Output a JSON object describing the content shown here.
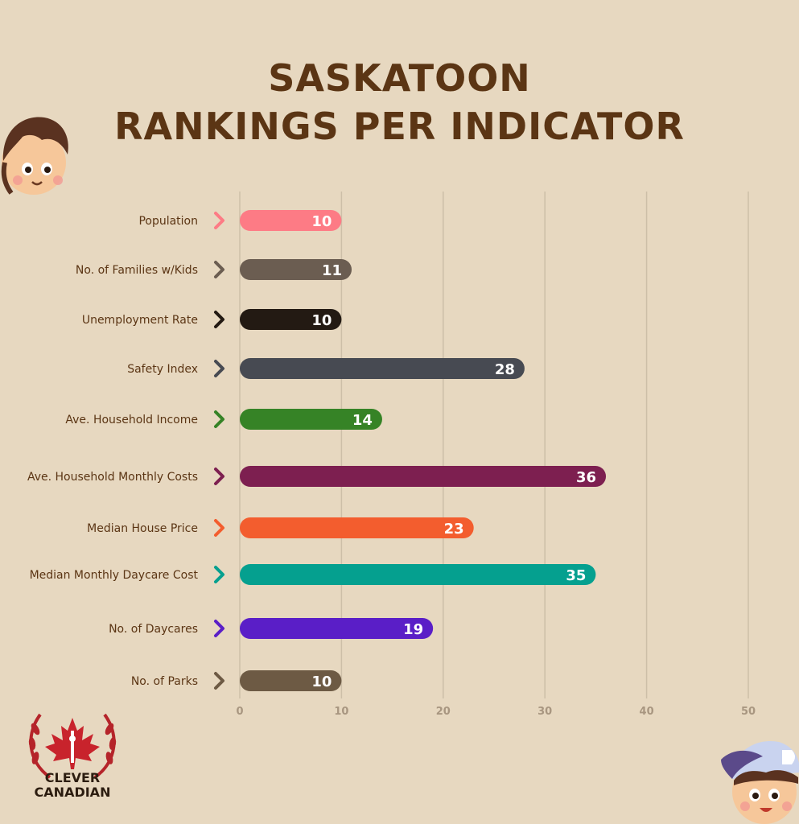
{
  "header": {
    "title_line1": "SASKATOON",
    "title_line2": "RANKINGS PER INDICATOR"
  },
  "logo": {
    "line1": "CLEVER",
    "line2": "CANADIAN"
  },
  "chart_data": {
    "type": "bar",
    "orientation": "horizontal",
    "categories": [
      "Population",
      "No. of Families w/Kids",
      "Unemployment Rate",
      "Safety Index",
      "Ave. Household Income",
      "Ave. Household Monthly Costs",
      "Median House Price",
      "Median Monthly Daycare Cost",
      "No. of Daycares",
      "No. of Parks"
    ],
    "values": [
      10,
      11,
      10,
      28,
      14,
      36,
      23,
      35,
      19,
      10
    ],
    "value_labels": [
      "10",
      "11",
      "10",
      "28",
      "14",
      "36",
      "23",
      "35",
      "19",
      "10"
    ],
    "colors": [
      "#fd7b85",
      "#6b5d51",
      "#231a13",
      "#474a52",
      "#368326",
      "#7d1f50",
      "#f35d2e",
      "#05a08f",
      "#5a1ec7",
      "#6d5a44"
    ],
    "xlim": [
      0,
      50
    ],
    "ticks": [
      0,
      10,
      20,
      30,
      40,
      50
    ],
    "tick_labels": [
      "0",
      "10",
      "20",
      "30",
      "40",
      "50"
    ],
    "grid": "vertical",
    "data_labels": "inside-end"
  }
}
